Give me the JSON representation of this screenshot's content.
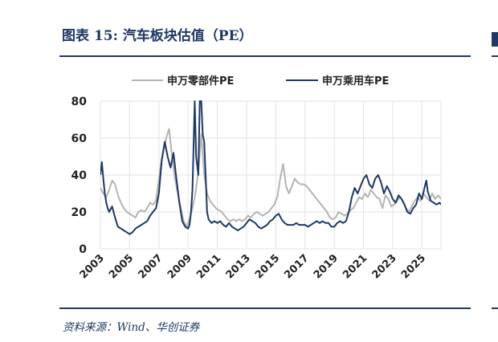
{
  "title": "图表 15:  汽车板块估值（PE）",
  "source": "资料来源：Wind、华创证券",
  "chart_data": {
    "type": "line",
    "ylim": [
      0,
      80
    ],
    "yticks": [
      0,
      20,
      40,
      60,
      80
    ],
    "xlim": [
      2003,
      2026.3
    ],
    "xticks": [
      "2003",
      "2005",
      "2007",
      "2009",
      "2011",
      "2013",
      "2015",
      "2017",
      "2019",
      "2021",
      "2023",
      "2025"
    ],
    "grid": true,
    "legend_position": "top",
    "series": [
      {
        "name": "申万零部件PE",
        "color": "#b4b4b4",
        "points": [
          [
            2003.0,
            33
          ],
          [
            2003.2,
            30
          ],
          [
            2003.4,
            28
          ],
          [
            2003.6,
            32
          ],
          [
            2003.8,
            37
          ],
          [
            2004.0,
            35
          ],
          [
            2004.2,
            29
          ],
          [
            2004.4,
            25
          ],
          [
            2004.6,
            22
          ],
          [
            2004.8,
            20
          ],
          [
            2005.0,
            19
          ],
          [
            2005.2,
            18
          ],
          [
            2005.4,
            17
          ],
          [
            2005.6,
            20
          ],
          [
            2005.8,
            21
          ],
          [
            2006.0,
            20
          ],
          [
            2006.2,
            22
          ],
          [
            2006.4,
            25
          ],
          [
            2006.6,
            24
          ],
          [
            2006.8,
            26
          ],
          [
            2007.0,
            38
          ],
          [
            2007.2,
            49
          ],
          [
            2007.5,
            60
          ],
          [
            2007.7,
            65
          ],
          [
            2007.9,
            50
          ],
          [
            2008.1,
            38
          ],
          [
            2008.3,
            30
          ],
          [
            2008.5,
            22
          ],
          [
            2008.7,
            15
          ],
          [
            2008.9,
            12
          ],
          [
            2009.1,
            16
          ],
          [
            2009.3,
            22
          ],
          [
            2009.5,
            30
          ],
          [
            2009.7,
            42
          ],
          [
            2009.9,
            62
          ],
          [
            2010.1,
            40
          ],
          [
            2010.3,
            30
          ],
          [
            2010.5,
            26
          ],
          [
            2010.7,
            24
          ],
          [
            2010.9,
            22
          ],
          [
            2011.1,
            21
          ],
          [
            2011.3,
            20
          ],
          [
            2011.5,
            18
          ],
          [
            2011.7,
            16
          ],
          [
            2011.9,
            15
          ],
          [
            2012.1,
            16
          ],
          [
            2012.3,
            15
          ],
          [
            2012.5,
            16
          ],
          [
            2012.7,
            15
          ],
          [
            2012.9,
            16
          ],
          [
            2013.1,
            18
          ],
          [
            2013.3,
            17
          ],
          [
            2013.5,
            19
          ],
          [
            2013.7,
            20
          ],
          [
            2013.9,
            19
          ],
          [
            2014.1,
            18
          ],
          [
            2014.3,
            19
          ],
          [
            2014.5,
            20
          ],
          [
            2014.7,
            22
          ],
          [
            2014.9,
            24
          ],
          [
            2015.1,
            28
          ],
          [
            2015.3,
            38
          ],
          [
            2015.5,
            46
          ],
          [
            2015.7,
            34
          ],
          [
            2015.9,
            30
          ],
          [
            2016.1,
            34
          ],
          [
            2016.3,
            38
          ],
          [
            2016.5,
            36
          ],
          [
            2016.7,
            35
          ],
          [
            2016.9,
            35
          ],
          [
            2017.1,
            34
          ],
          [
            2017.3,
            32
          ],
          [
            2017.5,
            30
          ],
          [
            2017.7,
            28
          ],
          [
            2017.9,
            26
          ],
          [
            2018.1,
            24
          ],
          [
            2018.3,
            22
          ],
          [
            2018.5,
            20
          ],
          [
            2018.7,
            17
          ],
          [
            2018.9,
            16
          ],
          [
            2019.1,
            17
          ],
          [
            2019.3,
            20
          ],
          [
            2019.5,
            19
          ],
          [
            2019.7,
            18
          ],
          [
            2019.9,
            19
          ],
          [
            2020.1,
            21
          ],
          [
            2020.3,
            22
          ],
          [
            2020.5,
            25
          ],
          [
            2020.7,
            28
          ],
          [
            2020.9,
            27
          ],
          [
            2021.1,
            30
          ],
          [
            2021.3,
            28
          ],
          [
            2021.5,
            32
          ],
          [
            2021.7,
            30
          ],
          [
            2021.9,
            28
          ],
          [
            2022.1,
            27
          ],
          [
            2022.3,
            22
          ],
          [
            2022.5,
            29
          ],
          [
            2022.7,
            27
          ],
          [
            2022.9,
            23
          ],
          [
            2023.1,
            24
          ],
          [
            2023.3,
            26
          ],
          [
            2023.5,
            28
          ],
          [
            2023.7,
            26
          ],
          [
            2023.9,
            22
          ],
          [
            2024.1,
            20
          ],
          [
            2024.3,
            23
          ],
          [
            2024.5,
            26
          ],
          [
            2024.7,
            28
          ],
          [
            2024.9,
            26
          ],
          [
            2025.1,
            30
          ],
          [
            2025.3,
            28
          ],
          [
            2025.5,
            26
          ],
          [
            2025.7,
            30
          ],
          [
            2025.9,
            27
          ],
          [
            2026.1,
            29
          ],
          [
            2026.3,
            27
          ]
        ]
      },
      {
        "name": "申万乘用车PE",
        "color": "#1f3864",
        "points": [
          [
            2003.0,
            40
          ],
          [
            2003.1,
            47
          ],
          [
            2003.2,
            38
          ],
          [
            2003.3,
            30
          ],
          [
            2003.4,
            25
          ],
          [
            2003.5,
            22
          ],
          [
            2003.6,
            20
          ],
          [
            2003.8,
            23
          ],
          [
            2004.0,
            17
          ],
          [
            2004.2,
            12
          ],
          [
            2004.4,
            11
          ],
          [
            2004.6,
            10
          ],
          [
            2004.8,
            9
          ],
          [
            2005.0,
            8
          ],
          [
            2005.2,
            9
          ],
          [
            2005.4,
            11
          ],
          [
            2005.6,
            12
          ],
          [
            2005.8,
            13
          ],
          [
            2006.0,
            14
          ],
          [
            2006.2,
            15
          ],
          [
            2006.4,
            18
          ],
          [
            2006.6,
            20
          ],
          [
            2006.8,
            22
          ],
          [
            2007.0,
            30
          ],
          [
            2007.2,
            48
          ],
          [
            2007.4,
            58
          ],
          [
            2007.6,
            50
          ],
          [
            2007.8,
            44
          ],
          [
            2008.0,
            52
          ],
          [
            2008.2,
            38
          ],
          [
            2008.4,
            25
          ],
          [
            2008.6,
            15
          ],
          [
            2008.8,
            12
          ],
          [
            2009.0,
            11
          ],
          [
            2009.1,
            13
          ],
          [
            2009.2,
            20
          ],
          [
            2009.3,
            32
          ],
          [
            2009.45,
            80
          ],
          [
            2009.55,
            50
          ],
          [
            2009.7,
            40
          ],
          [
            2009.8,
            80
          ],
          [
            2009.9,
            80
          ],
          [
            2010.0,
            62
          ],
          [
            2010.1,
            58
          ],
          [
            2010.2,
            40
          ],
          [
            2010.3,
            20
          ],
          [
            2010.4,
            16
          ],
          [
            2010.6,
            14
          ],
          [
            2010.8,
            15
          ],
          [
            2011.0,
            14
          ],
          [
            2011.2,
            15
          ],
          [
            2011.4,
            13
          ],
          [
            2011.6,
            12
          ],
          [
            2011.8,
            14
          ],
          [
            2012.0,
            12
          ],
          [
            2012.2,
            11
          ],
          [
            2012.4,
            10
          ],
          [
            2012.6,
            11
          ],
          [
            2012.8,
            12
          ],
          [
            2013.0,
            14
          ],
          [
            2013.2,
            16
          ],
          [
            2013.4,
            15
          ],
          [
            2013.6,
            14
          ],
          [
            2013.8,
            12
          ],
          [
            2014.0,
            11
          ],
          [
            2014.2,
            12
          ],
          [
            2014.4,
            13
          ],
          [
            2014.6,
            15
          ],
          [
            2014.8,
            16
          ],
          [
            2015.0,
            18
          ],
          [
            2015.2,
            19
          ],
          [
            2015.4,
            16
          ],
          [
            2015.6,
            14
          ],
          [
            2015.8,
            13
          ],
          [
            2016.0,
            13
          ],
          [
            2016.2,
            13
          ],
          [
            2016.4,
            14
          ],
          [
            2016.6,
            13
          ],
          [
            2016.8,
            13
          ],
          [
            2017.0,
            13
          ],
          [
            2017.2,
            12
          ],
          [
            2017.4,
            13
          ],
          [
            2017.6,
            14
          ],
          [
            2017.8,
            15
          ],
          [
            2018.0,
            14
          ],
          [
            2018.2,
            15
          ],
          [
            2018.4,
            14
          ],
          [
            2018.6,
            14
          ],
          [
            2018.8,
            12
          ],
          [
            2019.0,
            12
          ],
          [
            2019.2,
            14
          ],
          [
            2019.4,
            15
          ],
          [
            2019.6,
            14
          ],
          [
            2019.8,
            15
          ],
          [
            2020.0,
            20
          ],
          [
            2020.2,
            28
          ],
          [
            2020.4,
            33
          ],
          [
            2020.6,
            30
          ],
          [
            2020.8,
            34
          ],
          [
            2021.0,
            38
          ],
          [
            2021.2,
            40
          ],
          [
            2021.4,
            35
          ],
          [
            2021.6,
            33
          ],
          [
            2021.8,
            38
          ],
          [
            2022.0,
            40
          ],
          [
            2022.2,
            36
          ],
          [
            2022.4,
            30
          ],
          [
            2022.6,
            34
          ],
          [
            2022.8,
            31
          ],
          [
            2023.0,
            27
          ],
          [
            2023.2,
            25
          ],
          [
            2023.4,
            29
          ],
          [
            2023.6,
            27
          ],
          [
            2023.8,
            24
          ],
          [
            2024.0,
            20
          ],
          [
            2024.2,
            19
          ],
          [
            2024.4,
            22
          ],
          [
            2024.6,
            24
          ],
          [
            2024.8,
            30
          ],
          [
            2025.0,
            27
          ],
          [
            2025.2,
            34
          ],
          [
            2025.3,
            37
          ],
          [
            2025.4,
            31
          ],
          [
            2025.6,
            26
          ],
          [
            2025.8,
            25
          ],
          [
            2026.0,
            24
          ],
          [
            2026.2,
            25
          ],
          [
            2026.3,
            24
          ]
        ]
      }
    ]
  }
}
